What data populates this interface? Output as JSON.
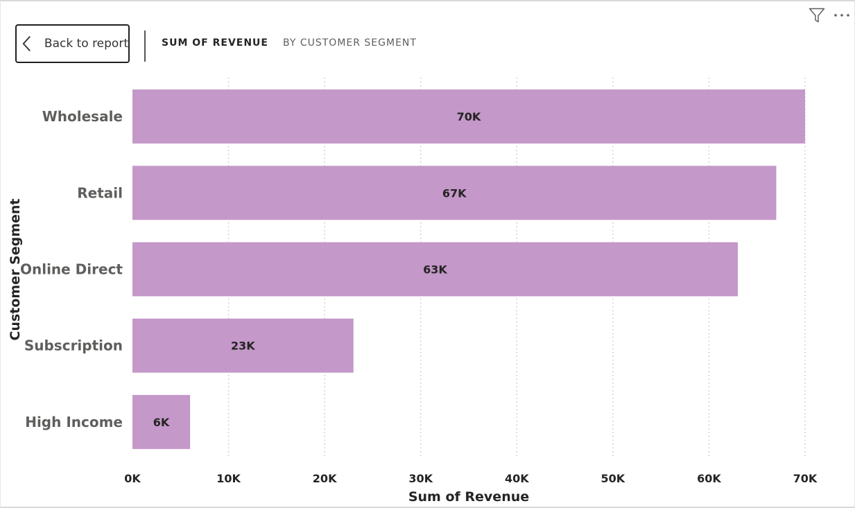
{
  "toolbar": {
    "back_label": "Back to report",
    "tabs": [
      {
        "label": "SUM OF REVENUE"
      },
      {
        "label": "BY CUSTOMER SEGMENT"
      }
    ],
    "filter_icon": "filter-icon",
    "more_icon": "more-options-icon"
  },
  "colors": {
    "bar": "#c498c9",
    "grid": "#c8c6c4"
  },
  "chart_data": {
    "type": "bar",
    "orientation": "horizontal",
    "categories": [
      "Wholesale",
      "Retail",
      "Online Direct",
      "Subscription",
      "High Income"
    ],
    "values": [
      70000,
      67000,
      63000,
      23000,
      6000
    ],
    "data_labels": [
      "70K",
      "67K",
      "63K",
      "23K",
      "6K"
    ],
    "xlabel": "Sum of Revenue",
    "ylabel": "Customer Segment",
    "xlim": [
      0,
      70000
    ],
    "x_ticks": [
      0,
      10000,
      20000,
      30000,
      40000,
      50000,
      60000,
      70000
    ],
    "x_tick_labels": [
      "0K",
      "10K",
      "20K",
      "30K",
      "40K",
      "50K",
      "60K",
      "70K"
    ],
    "grid": "vertical dotted"
  }
}
